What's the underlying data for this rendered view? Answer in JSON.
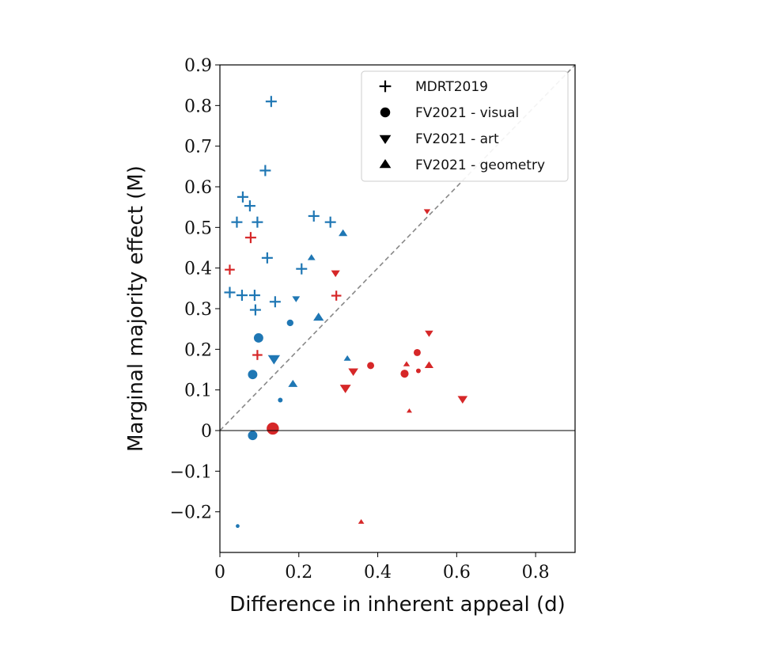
{
  "chart_data": {
    "type": "scatter",
    "title": "",
    "xlabel": "Difference in inherent appeal (d)",
    "ylabel": "Marginal majority effect (M)",
    "xlim": [
      0,
      0.9
    ],
    "ylim": [
      -0.3,
      0.9
    ],
    "x_ticks": [
      0,
      0.2,
      0.4,
      0.6,
      0.8
    ],
    "x_tick_labels": [
      "0",
      "0.2",
      "0.4",
      "0.6",
      "0.8"
    ],
    "y_ticks": [
      -0.2,
      -0.1,
      0,
      0.1,
      0.2,
      0.3,
      0.4,
      0.5,
      0.6,
      0.7,
      0.8,
      0.9
    ],
    "y_tick_labels": [
      "−0.2",
      "−0.1",
      "0",
      "0.1",
      "0.2",
      "0.3",
      "0.4",
      "0.5",
      "0.6",
      "0.7",
      "0.8",
      "0.9"
    ],
    "grid": false,
    "legend_position": "top-right",
    "reference_lines": [
      {
        "kind": "diagonal",
        "style": "dashed",
        "color": "#888888"
      },
      {
        "kind": "horizontal",
        "y": 0,
        "style": "solid",
        "color": "#000000"
      }
    ],
    "colors": {
      "blue": "#1f77b4",
      "red": "#d62728"
    },
    "legend": [
      {
        "label": "MDRT2019",
        "marker": "plus"
      },
      {
        "label": "FV2021 - visual",
        "marker": "circle"
      },
      {
        "label": "FV2021 - art",
        "marker": "triangle-down"
      },
      {
        "label": "FV2021 - geometry",
        "marker": "triangle-up"
      }
    ],
    "series": [
      {
        "marker": "plus",
        "points": [
          {
            "x": 0.13,
            "y": 0.81,
            "c": "blue",
            "s": 1.0
          },
          {
            "x": 0.115,
            "y": 0.64,
            "c": "blue",
            "s": 1.0
          },
          {
            "x": 0.058,
            "y": 0.575,
            "c": "blue",
            "s": 1.0
          },
          {
            "x": 0.076,
            "y": 0.553,
            "c": "blue",
            "s": 1.0
          },
          {
            "x": 0.043,
            "y": 0.513,
            "c": "blue",
            "s": 1.0
          },
          {
            "x": 0.095,
            "y": 0.513,
            "c": "blue",
            "s": 1.0
          },
          {
            "x": 0.238,
            "y": 0.528,
            "c": "blue",
            "s": 1.0
          },
          {
            "x": 0.28,
            "y": 0.513,
            "c": "blue",
            "s": 1.0
          },
          {
            "x": 0.078,
            "y": 0.475,
            "c": "red",
            "s": 1.0
          },
          {
            "x": 0.12,
            "y": 0.425,
            "c": "blue",
            "s": 1.0
          },
          {
            "x": 0.207,
            "y": 0.398,
            "c": "blue",
            "s": 1.0
          },
          {
            "x": 0.025,
            "y": 0.396,
            "c": "red",
            "s": 0.9
          },
          {
            "x": 0.025,
            "y": 0.34,
            "c": "blue",
            "s": 1.0
          },
          {
            "x": 0.056,
            "y": 0.333,
            "c": "blue",
            "s": 1.0
          },
          {
            "x": 0.088,
            "y": 0.333,
            "c": "blue",
            "s": 1.0
          },
          {
            "x": 0.14,
            "y": 0.317,
            "c": "blue",
            "s": 1.0
          },
          {
            "x": 0.09,
            "y": 0.297,
            "c": "blue",
            "s": 1.0
          },
          {
            "x": 0.295,
            "y": 0.332,
            "c": "red",
            "s": 0.9
          },
          {
            "x": 0.095,
            "y": 0.186,
            "c": "red",
            "s": 0.9
          }
        ]
      },
      {
        "marker": "circle",
        "points": [
          {
            "x": 0.098,
            "y": 0.228,
            "c": "blue",
            "s": 1.0
          },
          {
            "x": 0.178,
            "y": 0.265,
            "c": "blue",
            "s": 0.7
          },
          {
            "x": 0.083,
            "y": 0.138,
            "c": "blue",
            "s": 1.0
          },
          {
            "x": 0.153,
            "y": 0.075,
            "c": "blue",
            "s": 0.5
          },
          {
            "x": 0.083,
            "y": -0.012,
            "c": "blue",
            "s": 1.0
          },
          {
            "x": 0.134,
            "y": 0.005,
            "c": "red",
            "s": 1.3
          },
          {
            "x": 0.382,
            "y": 0.16,
            "c": "red",
            "s": 0.75
          },
          {
            "x": 0.468,
            "y": 0.14,
            "c": "red",
            "s": 0.85
          },
          {
            "x": 0.5,
            "y": 0.192,
            "c": "red",
            "s": 0.75
          },
          {
            "x": 0.503,
            "y": 0.147,
            "c": "red",
            "s": 0.5
          },
          {
            "x": 0.045,
            "y": -0.235,
            "c": "blue",
            "s": 0.4
          }
        ]
      },
      {
        "marker": "triangle-down",
        "points": [
          {
            "x": 0.293,
            "y": 0.388,
            "c": "red",
            "s": 0.8
          },
          {
            "x": 0.193,
            "y": 0.325,
            "c": "blue",
            "s": 0.7
          },
          {
            "x": 0.137,
            "y": 0.177,
            "c": "blue",
            "s": 1.1
          },
          {
            "x": 0.318,
            "y": 0.105,
            "c": "red",
            "s": 1.0
          },
          {
            "x": 0.338,
            "y": 0.146,
            "c": "red",
            "s": 0.9
          },
          {
            "x": 0.53,
            "y": 0.24,
            "c": "red",
            "s": 0.75
          },
          {
            "x": 0.615,
            "y": 0.078,
            "c": "red",
            "s": 0.9
          },
          {
            "x": 0.525,
            "y": 0.54,
            "c": "red",
            "s": 0.6
          }
        ]
      },
      {
        "marker": "triangle-up",
        "points": [
          {
            "x": 0.312,
            "y": 0.485,
            "c": "blue",
            "s": 0.8
          },
          {
            "x": 0.232,
            "y": 0.425,
            "c": "blue",
            "s": 0.7
          },
          {
            "x": 0.25,
            "y": 0.278,
            "c": "blue",
            "s": 0.95
          },
          {
            "x": 0.323,
            "y": 0.177,
            "c": "blue",
            "s": 0.65
          },
          {
            "x": 0.185,
            "y": 0.114,
            "c": "blue",
            "s": 0.85
          },
          {
            "x": 0.473,
            "y": 0.163,
            "c": "red",
            "s": 0.6
          },
          {
            "x": 0.53,
            "y": 0.16,
            "c": "red",
            "s": 0.8
          },
          {
            "x": 0.48,
            "y": 0.048,
            "c": "red",
            "s": 0.5
          },
          {
            "x": 0.358,
            "y": -0.225,
            "c": "red",
            "s": 0.55
          }
        ]
      }
    ]
  }
}
